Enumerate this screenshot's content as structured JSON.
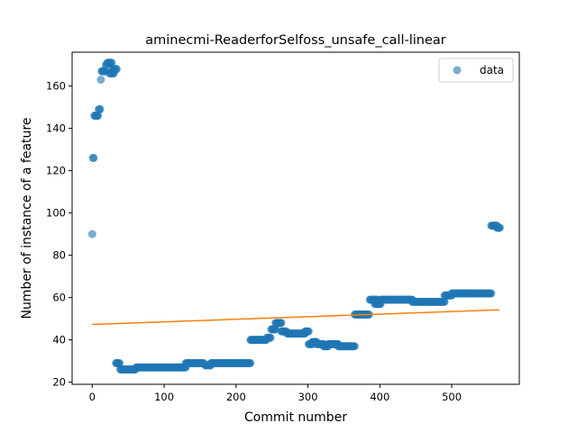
{
  "chart_data": {
    "type": "scatter",
    "title": "aminecmi-ReaderforSelfoss_unsafe_call-linear",
    "xlabel": "Commit number",
    "ylabel": "Number of instance of a feature",
    "xlim": [
      -28,
      594
    ],
    "ylim": [
      19,
      176
    ],
    "xticks": [
      0,
      100,
      200,
      300,
      400,
      500
    ],
    "yticks": [
      20,
      40,
      60,
      80,
      100,
      120,
      140,
      160
    ],
    "grid": false,
    "legend": {
      "position": "top-right",
      "entries": [
        "data"
      ]
    },
    "colors": {
      "points": "#1f77b4",
      "fit": "#ff7f0e"
    },
    "segments": [
      [
        0,
        0,
        90
      ],
      [
        1,
        2,
        126
      ],
      [
        3,
        8,
        146
      ],
      [
        9,
        11,
        149
      ],
      [
        12,
        12,
        163
      ],
      [
        13,
        18,
        167
      ],
      [
        19,
        20,
        170
      ],
      [
        21,
        27,
        171
      ],
      [
        24,
        30,
        166
      ],
      [
        28,
        34,
        168
      ],
      [
        33,
        38,
        29
      ],
      [
        39,
        60,
        26
      ],
      [
        61,
        130,
        27
      ],
      [
        130,
        155,
        29
      ],
      [
        157,
        165,
        28
      ],
      [
        165,
        220,
        29
      ],
      [
        220,
        242,
        40
      ],
      [
        243,
        248,
        41
      ],
      [
        249,
        255,
        45
      ],
      [
        255,
        263,
        48
      ],
      [
        263,
        270,
        44
      ],
      [
        271,
        296,
        43
      ],
      [
        296,
        301,
        44
      ],
      [
        301,
        306,
        38
      ],
      [
        306,
        312,
        39
      ],
      [
        312,
        322,
        38
      ],
      [
        322,
        328,
        37
      ],
      [
        328,
        342,
        38
      ],
      [
        342,
        365,
        37
      ],
      [
        365,
        385,
        52
      ],
      [
        386,
        396,
        59
      ],
      [
        393,
        401,
        57
      ],
      [
        401,
        445,
        59
      ],
      [
        445,
        490,
        58
      ],
      [
        490,
        500,
        61
      ],
      [
        500,
        555,
        62
      ],
      [
        555,
        563,
        94
      ],
      [
        563,
        567,
        93
      ]
    ],
    "fit_line": {
      "x": [
        0,
        566
      ],
      "y": [
        47.3,
        54.2
      ]
    }
  }
}
